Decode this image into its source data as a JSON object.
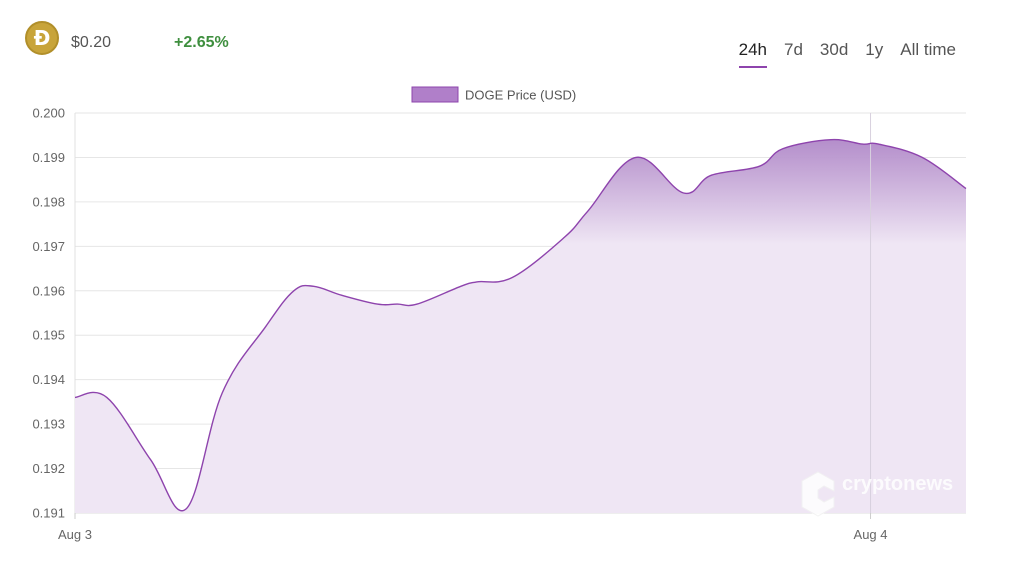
{
  "coin": {
    "symbol_glyph": "Ð",
    "price": "$0.20",
    "change": "+2.65%",
    "change_color": "#3f8f3f",
    "logo_color": "#c8a43a"
  },
  "tabs": [
    {
      "label": "24h",
      "active": true
    },
    {
      "label": "7d",
      "active": false
    },
    {
      "label": "30d",
      "active": false
    },
    {
      "label": "1y",
      "active": false
    },
    {
      "label": "All time",
      "active": false
    }
  ],
  "watermark": "cryptonews",
  "colors": {
    "line": "#8e44ad",
    "fill_top": "#b088c8",
    "fill_bottom": "#efe6f4",
    "legend_fill": "#b07fc9"
  },
  "chart_data": {
    "type": "area",
    "title": "",
    "legend": [
      "DOGE Price (USD)"
    ],
    "legend_position": "top-center",
    "grid": true,
    "ylim": [
      0.191,
      0.2
    ],
    "yticks": [
      "0.191",
      "0.192",
      "0.193",
      "0.194",
      "0.195",
      "0.196",
      "0.197",
      "0.198",
      "0.199",
      "0.200"
    ],
    "xticks": [
      {
        "label": "Aug 3",
        "at": 0
      },
      {
        "label": "Aug 4",
        "at": 20
      }
    ],
    "crosshair_at": 20,
    "series": [
      {
        "name": "DOGE Price (USD)",
        "x": [
          0,
          0.8,
          1.9,
          2.8,
          3.7,
          4.8,
          5.5,
          6,
          6.7,
          7.6,
          8.1,
          8.6,
          9.7,
          10.1,
          11,
          12.3,
          12.9,
          14.1,
          15.3,
          16,
          17.2,
          17.8,
          19,
          19.8,
          20.2,
          21.3,
          22.4
        ],
        "values": [
          0.1936,
          0.1936,
          0.1922,
          0.1911,
          0.1937,
          0.1952,
          0.196,
          0.1961,
          0.1959,
          0.1957,
          0.1957,
          0.1957,
          0.1961,
          0.1962,
          0.1963,
          0.1972,
          0.1978,
          0.199,
          0.1982,
          0.1986,
          0.1988,
          0.1992,
          0.1994,
          0.1993,
          0.1993,
          0.199,
          0.1983
        ]
      }
    ]
  }
}
